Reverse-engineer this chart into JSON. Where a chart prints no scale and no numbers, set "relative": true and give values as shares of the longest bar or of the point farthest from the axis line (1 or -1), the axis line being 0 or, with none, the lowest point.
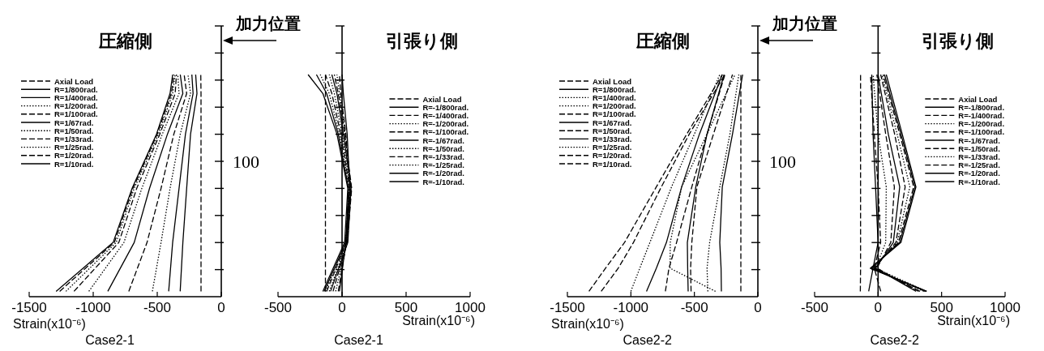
{
  "chart_data": [
    {
      "type": "line",
      "relative": true,
      "title": "圧縮側",
      "subtitle": "Case2-1",
      "xlabel": "Strain(x10⁻⁶)",
      "xlim": [
        -1500,
        0
      ],
      "xticks": [
        -1500,
        -1000,
        -500,
        0
      ],
      "legend": "top left",
      "annotations": [
        "加力位置",
        "100"
      ],
      "series": [
        {
          "name": "Axial Load",
          "color": "#000000",
          "line_style": "dashed",
          "x": [
            -158,
            -158,
            -158,
            -158,
            -158,
            -160
          ],
          "values": [
            0.024,
            0.244,
            0.488,
            0.732,
            0.915,
            1
          ]
        },
        {
          "name": "R=1/800rad.",
          "color": "#000000",
          "line_style": "solid",
          "x": [
            -321,
            -300,
            -270,
            -240,
            -190,
            -200
          ],
          "values": [
            0.024,
            0.244,
            0.488,
            0.732,
            0.915,
            1
          ]
        },
        {
          "name": "R=1/400rad.",
          "color": "#000000",
          "line_style": "solid",
          "x": [
            -411,
            -380,
            -330,
            -280,
            -220,
            -230
          ],
          "values": [
            0.024,
            0.244,
            0.488,
            0.732,
            0.915,
            1
          ]
        },
        {
          "name": "R=1/200rad.",
          "color": "#000000",
          "line_style": "dotted",
          "x": [
            -538,
            -470,
            -400,
            -320,
            -240,
            -260
          ],
          "values": [
            0.024,
            0.244,
            0.488,
            0.732,
            0.915,
            1
          ]
        },
        {
          "name": "R=1/100rad.",
          "color": "#000000",
          "line_style": "dashed",
          "x": [
            -722,
            -580,
            -470,
            -370,
            -270,
            -290
          ],
          "values": [
            0.024,
            0.244,
            0.488,
            0.732,
            0.915,
            1
          ]
        },
        {
          "name": "R=1/67rad.",
          "color": "#000000",
          "line_style": "solid",
          "x": [
            -886,
            -680,
            -560,
            -420,
            -300,
            -320
          ],
          "values": [
            0.024,
            0.244,
            0.488,
            0.732,
            0.915,
            1
          ]
        },
        {
          "name": "R=1/50rad.",
          "color": "#000000",
          "line_style": "dotted",
          "x": [
            -1034,
            -760,
            -620,
            -460,
            -330,
            -340
          ],
          "values": [
            0.024,
            0.244,
            0.488,
            0.732,
            0.915,
            1
          ]
        },
        {
          "name": "R=1/33rad.",
          "color": "#000000",
          "line_style": "dashed",
          "x": [
            -1150,
            -800,
            -660,
            -480,
            -360,
            -350
          ],
          "values": [
            0.024,
            0.244,
            0.488,
            0.732,
            0.915,
            1
          ]
        },
        {
          "name": "R=1/25rad.",
          "color": "#000000",
          "line_style": "dotted",
          "x": [
            -1213,
            -820,
            -680,
            -490,
            -380,
            -360
          ],
          "values": [
            0.024,
            0.244,
            0.488,
            0.732,
            0.915,
            1
          ]
        },
        {
          "name": "R=1/20rad.",
          "color": "#000000",
          "line_style": "dashed",
          "x": [
            -1262,
            -835,
            -690,
            -500,
            -390,
            -370
          ],
          "values": [
            0.024,
            0.244,
            0.488,
            0.732,
            0.915,
            1
          ]
        },
        {
          "name": "R=1/10rad.",
          "color": "#000000",
          "line_style": "solid",
          "x": [
            -1290,
            -844,
            -696,
            -506,
            -400,
            -380
          ],
          "values": [
            0.024,
            0.244,
            0.488,
            0.732,
            0.915,
            1
          ]
        }
      ]
    },
    {
      "type": "line",
      "relative": true,
      "title": "引張り側",
      "subtitle": "Case2-1",
      "xlabel": "Strain(x10⁻⁶)",
      "xlim": [
        -500,
        1000
      ],
      "xticks": [
        -500,
        0,
        500,
        1000
      ],
      "legend": "right",
      "series": [
        {
          "name": "Axial Load",
          "color": "#000000",
          "line_style": "dashed",
          "x": [
            -130,
            -130,
            -130,
            -130,
            -130,
            -130
          ],
          "values": [
            0.024,
            0.244,
            0.488,
            0.732,
            0.915,
            1
          ]
        },
        {
          "name": "R=-1/800rad.",
          "color": "#000000",
          "line_style": "solid",
          "x": [
            -20,
            30,
            60,
            40,
            10,
            0
          ],
          "values": [
            0.024,
            0.244,
            0.488,
            0.732,
            0.915,
            1
          ]
        },
        {
          "name": "R=-1/400rad.",
          "color": "#000000",
          "line_style": "dashed",
          "x": [
            -30,
            35,
            65,
            30,
            -10,
            -20
          ],
          "values": [
            0.024,
            0.244,
            0.488,
            0.732,
            0.915,
            1
          ]
        },
        {
          "name": "R=-1/200rad.",
          "color": "#000000",
          "line_style": "dotted",
          "x": [
            -50,
            40,
            70,
            25,
            -20,
            -40
          ],
          "values": [
            0.024,
            0.244,
            0.488,
            0.732,
            0.915,
            1
          ]
        },
        {
          "name": "R=-1/100rad.",
          "color": "#000000",
          "line_style": "dashed",
          "x": [
            -70,
            40,
            75,
            20,
            -30,
            -60
          ],
          "values": [
            0.024,
            0.244,
            0.488,
            0.732,
            0.915,
            1
          ]
        },
        {
          "name": "R=-1/67rad.",
          "color": "#000000",
          "line_style": "solid",
          "x": [
            -90,
            45,
            70,
            10,
            -40,
            -80
          ],
          "values": [
            0.024,
            0.244,
            0.488,
            0.732,
            0.915,
            1
          ]
        },
        {
          "name": "R=-1/50rad.",
          "color": "#000000",
          "line_style": "dotted",
          "x": [
            -100,
            40,
            65,
            0,
            -60,
            -100
          ],
          "values": [
            0.024,
            0.244,
            0.488,
            0.732,
            0.915,
            1
          ]
        },
        {
          "name": "R=-1/33rad.",
          "color": "#000000",
          "line_style": "dashed",
          "x": [
            -120,
            35,
            60,
            -10,
            -80,
            -130
          ],
          "values": [
            0.024,
            0.244,
            0.488,
            0.732,
            0.915,
            1
          ]
        },
        {
          "name": "R=-1/25rad.",
          "color": "#000000",
          "line_style": "dotted",
          "x": [
            -130,
            30,
            55,
            -20,
            -100,
            -170
          ],
          "values": [
            0.024,
            0.244,
            0.488,
            0.732,
            0.915,
            1
          ]
        },
        {
          "name": "R=-1/20rad.",
          "color": "#000000",
          "line_style": "solid",
          "x": [
            -140,
            30,
            50,
            -30,
            -120,
            -200
          ],
          "values": [
            0.024,
            0.244,
            0.488,
            0.732,
            0.915,
            1
          ]
        },
        {
          "name": "R=-1/10rad.",
          "color": "#000000",
          "line_style": "solid",
          "x": [
            -150,
            20,
            45,
            -40,
            -150,
            -265
          ],
          "values": [
            0.024,
            0.244,
            0.488,
            0.732,
            0.915,
            1
          ]
        }
      ]
    },
    {
      "type": "line",
      "relative": true,
      "title": "圧縮側",
      "subtitle": "Case2-2",
      "xlabel": "Strain(x10⁻⁶)",
      "xlim": [
        -1500,
        0
      ],
      "xticks": [
        -1500,
        -1000,
        -500,
        0
      ],
      "legend": "top left",
      "annotations": [
        "加力位置",
        "100"
      ],
      "series": [
        {
          "name": "Axial Load",
          "color": "#000000",
          "line_style": "dashed",
          "x": [
            -134,
            -134,
            -134,
            -134,
            -134,
            -134
          ],
          "values": [
            0.024,
            0.128,
            0.244,
            0.494,
            0.732,
            1
          ]
        },
        {
          "name": "R=1/800rad.",
          "color": "#000000",
          "line_style": "solid",
          "x": [
            -287,
            -290,
            -300,
            -280,
            -200,
            -120
          ],
          "values": [
            0.024,
            0.128,
            0.244,
            0.494,
            0.732,
            1
          ]
        },
        {
          "name": "R=1/400rad.",
          "color": "#000000",
          "line_style": "dotted",
          "x": [
            -334,
            -691,
            -690,
            -600,
            -400,
            -180
          ],
          "values": [
            0.024,
            0.128,
            0.244,
            0.494,
            0.732,
            1
          ]
        },
        {
          "name": "R=1/200rad.",
          "color": "#000000",
          "line_style": "dotted",
          "x": [
            -394,
            -400,
            -380,
            -300,
            -220,
            -150
          ],
          "values": [
            0.024,
            0.128,
            0.244,
            0.494,
            0.732,
            1
          ]
        },
        {
          "name": "R=1/100rad.",
          "color": "#000000",
          "line_style": "dashed",
          "x": [
            -526,
            -530,
            -520,
            -480,
            -350,
            -200
          ],
          "values": [
            0.024,
            0.128,
            0.244,
            0.494,
            0.732,
            1
          ]
        },
        {
          "name": "R=1/67rad.",
          "color": "#000000",
          "line_style": "solid",
          "x": [
            -549,
            -553,
            -555,
            -489,
            -400,
            -266
          ],
          "values": [
            0.024,
            0.128,
            0.244,
            0.494,
            0.732,
            1
          ]
        },
        {
          "name": "R=1/50rad.",
          "color": "#000000",
          "line_style": "dashed",
          "x": [
            -728,
            -700,
            -640,
            -520,
            -400,
            -260
          ],
          "values": [
            0.024,
            0.128,
            0.244,
            0.494,
            0.732,
            1
          ]
        },
        {
          "name": "R=1/33rad.",
          "color": "#000000",
          "line_style": "solid",
          "x": [
            -877,
            -800,
            -720,
            -600,
            -460,
            -280
          ],
          "values": [
            0.024,
            0.128,
            0.244,
            0.494,
            0.732,
            1
          ]
        },
        {
          "name": "R=1/25rad.",
          "color": "#000000",
          "line_style": "dotted",
          "x": [
            -1000,
            -930,
            -850,
            -680,
            -500,
            -300
          ],
          "values": [
            0.024,
            0.128,
            0.244,
            0.494,
            0.732,
            1
          ]
        },
        {
          "name": "R=1/20rad.",
          "color": "#000000",
          "line_style": "dashed",
          "x": [
            -1234,
            -1100,
            -980,
            -760,
            -540,
            -260
          ],
          "values": [
            0.024,
            0.128,
            0.244,
            0.494,
            0.732,
            1
          ]
        },
        {
          "name": "R=1/10rad.",
          "color": "#000000",
          "line_style": "dashed",
          "x": [
            -1330,
            -1200,
            -1050,
            -800,
            -560,
            -280
          ],
          "values": [
            0.024,
            0.128,
            0.244,
            0.494,
            0.732,
            1
          ]
        }
      ]
    },
    {
      "type": "line",
      "relative": true,
      "title": "引張り側",
      "subtitle": "Case2-2",
      "xlabel": "Strain(x10⁻⁶)",
      "xlim": [
        -500,
        1000
      ],
      "xticks": [
        -500,
        0,
        500,
        1000
      ],
      "legend": "right",
      "series": [
        {
          "name": "Axial Load",
          "color": "#000000",
          "line_style": "dashed",
          "x": [
            -140,
            -138,
            -138,
            -138,
            -138,
            -138
          ],
          "values": [
            0.024,
            0.128,
            0.244,
            0.494,
            0.732,
            1
          ]
        },
        {
          "name": "R=-1/800rad.",
          "color": "#000000",
          "line_style": "solid",
          "x": [
            -74,
            -40,
            0,
            -20,
            -40,
            -50
          ],
          "values": [
            0.024,
            0.128,
            0.244,
            0.494,
            0.732,
            1
          ]
        },
        {
          "name": "R=-1/400rad.",
          "color": "#000000",
          "line_style": "dashed",
          "x": [
            21,
            -30,
            20,
            0,
            -30,
            -60
          ],
          "values": [
            0.024,
            0.128,
            0.244,
            0.494,
            0.732,
            1
          ]
        },
        {
          "name": "R=-1/200rad.",
          "color": "#000000",
          "line_style": "dotted",
          "x": [
            380,
            -20,
            60,
            64,
            0,
            -40
          ],
          "values": [
            0.024,
            0.128,
            0.244,
            0.494,
            0.732,
            1
          ]
        },
        {
          "name": "R=-1/100rad.",
          "color": "#000000",
          "line_style": "dashed",
          "x": [
            319,
            -10,
            100,
            128,
            60,
            -10
          ],
          "values": [
            0.024,
            0.128,
            0.244,
            0.494,
            0.732,
            1
          ]
        },
        {
          "name": "R=-1/67rad.",
          "color": "#000000",
          "line_style": "solid",
          "x": [
            300,
            -20,
            120,
            170,
            80,
            0
          ],
          "values": [
            0.024,
            0.128,
            0.244,
            0.494,
            0.732,
            1
          ]
        },
        {
          "name": "R=-1/50rad.",
          "color": "#000000",
          "line_style": "dashed",
          "x": [
            330,
            -30,
            140,
            213,
            130,
            20
          ],
          "values": [
            0.024,
            0.128,
            0.244,
            0.494,
            0.732,
            1
          ]
        },
        {
          "name": "R=-1/33rad.",
          "color": "#000000",
          "line_style": "dotted",
          "x": [
            360,
            -40,
            150,
            250,
            150,
            30
          ],
          "values": [
            0.024,
            0.128,
            0.244,
            0.494,
            0.732,
            1
          ]
        },
        {
          "name": "R=-1/25rad.",
          "color": "#000000",
          "line_style": "dashed",
          "x": [
            370,
            -50,
            160,
            280,
            170,
            40
          ],
          "values": [
            0.024,
            0.128,
            0.244,
            0.494,
            0.732,
            1
          ]
        },
        {
          "name": "R=-1/20rad.",
          "color": "#000000",
          "line_style": "solid",
          "x": [
            380,
            -60,
            170,
            290,
            180,
            50
          ],
          "values": [
            0.024,
            0.128,
            0.244,
            0.494,
            0.732,
            1
          ]
        },
        {
          "name": "R=-1/10rad.",
          "color": "#000000",
          "line_style": "solid",
          "x": [
            383,
            -60,
            180,
            298,
            190,
            64
          ],
          "values": [
            0.024,
            0.128,
            0.244,
            0.494,
            0.732,
            1
          ]
        }
      ]
    }
  ]
}
